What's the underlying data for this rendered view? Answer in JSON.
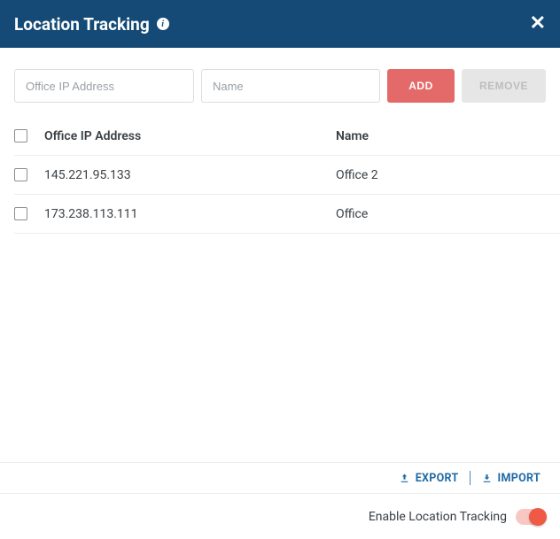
{
  "header": {
    "title": "Location Tracking"
  },
  "inputs": {
    "ip_placeholder": "Office IP Address",
    "name_placeholder": "Name"
  },
  "buttons": {
    "add": "ADD",
    "remove": "REMOVE",
    "export": "EXPORT",
    "import": "IMPORT"
  },
  "columns": {
    "ip": "Office IP Address",
    "name": "Name"
  },
  "rows": [
    {
      "ip": "145.221.95.133",
      "name": "Office 2"
    },
    {
      "ip": "173.238.113.111",
      "name": "Office"
    }
  ],
  "toggle": {
    "label": "Enable Location Tracking",
    "on": true
  },
  "colors": {
    "header_bg": "#144a75",
    "accent_link": "#1f6aa5",
    "add_btn": "#e46a6a",
    "toggle_knob": "#ef5a47",
    "toggle_track": "#f9c7c1"
  }
}
